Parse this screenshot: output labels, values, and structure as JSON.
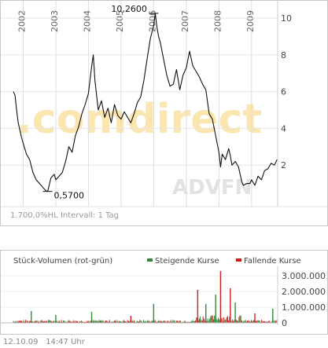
{
  "chart_data": [
    {
      "type": "line",
      "title": "",
      "x_ticks": [
        "2002",
        "2003",
        "2004",
        "2005",
        "2006",
        "2007",
        "2008",
        "2009"
      ],
      "y_ticks": [
        2,
        4,
        6,
        8,
        10
      ],
      "ylim": [
        0,
        10.6
      ],
      "grid": true,
      "annotations": [
        {
          "label": "10,2600",
          "x": 2006.0,
          "y": 10.26
        },
        {
          "label": "0,5700",
          "x": 2002.75,
          "y": 0.57
        }
      ],
      "series": [
        {
          "name": "",
          "x": [
            2001.7,
            2001.75,
            2001.8,
            2001.85,
            2001.9,
            2001.95,
            2002.0,
            2002.1,
            2002.2,
            2002.3,
            2002.4,
            2002.5,
            2002.6,
            2002.7,
            2002.75,
            2002.85,
            2002.95,
            2003.0,
            2003.1,
            2003.2,
            2003.3,
            2003.4,
            2003.5,
            2003.6,
            2003.7,
            2003.8,
            2003.9,
            2004.0,
            2004.1,
            2004.15,
            2004.2,
            2004.3,
            2004.4,
            2004.5,
            2004.6,
            2004.7,
            2004.8,
            2004.9,
            2005.0,
            2005.1,
            2005.2,
            2005.3,
            2005.4,
            2005.5,
            2005.6,
            2005.7,
            2005.8,
            2005.9,
            2006.0,
            2006.05,
            2006.1,
            2006.15,
            2006.2,
            2006.3,
            2006.4,
            2006.5,
            2006.6,
            2006.7,
            2006.8,
            2006.9,
            2007.0,
            2007.1,
            2007.2,
            2007.3,
            2007.4,
            2007.5,
            2007.6,
            2007.7,
            2007.8,
            2007.9,
            2008.0,
            2008.05,
            2008.1,
            2008.2,
            2008.3,
            2008.35,
            2008.4,
            2008.5,
            2008.6,
            2008.7,
            2008.75,
            2008.85,
            2008.95,
            2009.0,
            2009.1,
            2009.2,
            2009.3,
            2009.4,
            2009.5,
            2009.6,
            2009.7,
            2009.78
          ],
          "values": [
            6.0,
            5.8,
            5.0,
            4.3,
            3.9,
            3.5,
            3.2,
            2.6,
            2.3,
            1.6,
            1.2,
            1.0,
            0.8,
            0.6,
            0.57,
            1.3,
            1.5,
            1.2,
            1.4,
            1.6,
            2.2,
            3.0,
            2.7,
            3.6,
            4.1,
            4.8,
            5.3,
            5.9,
            7.4,
            8.0,
            6.6,
            5.0,
            5.5,
            4.6,
            5.1,
            4.3,
            5.3,
            4.7,
            4.5,
            4.9,
            4.6,
            4.3,
            4.8,
            5.4,
            5.7,
            6.6,
            7.8,
            8.9,
            9.6,
            10.26,
            9.5,
            9.0,
            8.7,
            7.8,
            6.9,
            6.3,
            6.4,
            7.2,
            6.1,
            6.9,
            7.3,
            8.2,
            7.4,
            7.1,
            6.8,
            6.4,
            6.1,
            4.8,
            4.5,
            3.6,
            2.7,
            1.9,
            2.6,
            2.3,
            2.9,
            2.5,
            2.0,
            2.2,
            1.9,
            1.1,
            0.9,
            1.0,
            1.0,
            1.2,
            0.9,
            1.4,
            1.2,
            1.7,
            1.8,
            2.1,
            2.0,
            2.3
          ]
        }
      ],
      "watermark": ".comdirect",
      "footer_text": "1.700,0%HL Intervall: 1 Tag",
      "provider": "ADVFN"
    },
    {
      "type": "bar",
      "title": "Stück-Volumen (rot-grün)",
      "y_ticks": [
        "0",
        "1.000.000",
        "2.000.000",
        "3.000.000"
      ],
      "ylim": [
        0,
        3300000
      ],
      "legend": [
        {
          "name": "Steigende Kurse",
          "color": "#2e8b3a"
        },
        {
          "name": "Fallende Kurse",
          "color": "#cc1e1e"
        }
      ],
      "spikes": [
        {
          "x": 2002.25,
          "value": 750000,
          "color": "#2e8b3a"
        },
        {
          "x": 2003.0,
          "value": 500000,
          "color": "#2e8b3a"
        },
        {
          "x": 2004.1,
          "value": 700000,
          "color": "#2e8b3a"
        },
        {
          "x": 2005.3,
          "value": 450000,
          "color": "#cc1e1e"
        },
        {
          "x": 2006.0,
          "value": 1200000,
          "color": "#2e8b3a"
        },
        {
          "x": 2007.35,
          "value": 2100000,
          "color": "#cc1e1e"
        },
        {
          "x": 2007.6,
          "value": 1200000,
          "color": "#2e8b3a"
        },
        {
          "x": 2007.9,
          "value": 1800000,
          "color": "#2e8b3a"
        },
        {
          "x": 2008.05,
          "value": 3300000,
          "color": "#cc1e1e"
        },
        {
          "x": 2008.35,
          "value": 2200000,
          "color": "#cc1e1e"
        },
        {
          "x": 2008.5,
          "value": 1300000,
          "color": "#2e8b3a"
        },
        {
          "x": 2009.1,
          "value": 600000,
          "color": "#cc1e1e"
        },
        {
          "x": 2009.65,
          "value": 900000,
          "color": "#2e8b3a"
        }
      ]
    }
  ],
  "timestamp": {
    "date": "12.10.09",
    "time": "14:47 Uhr"
  }
}
